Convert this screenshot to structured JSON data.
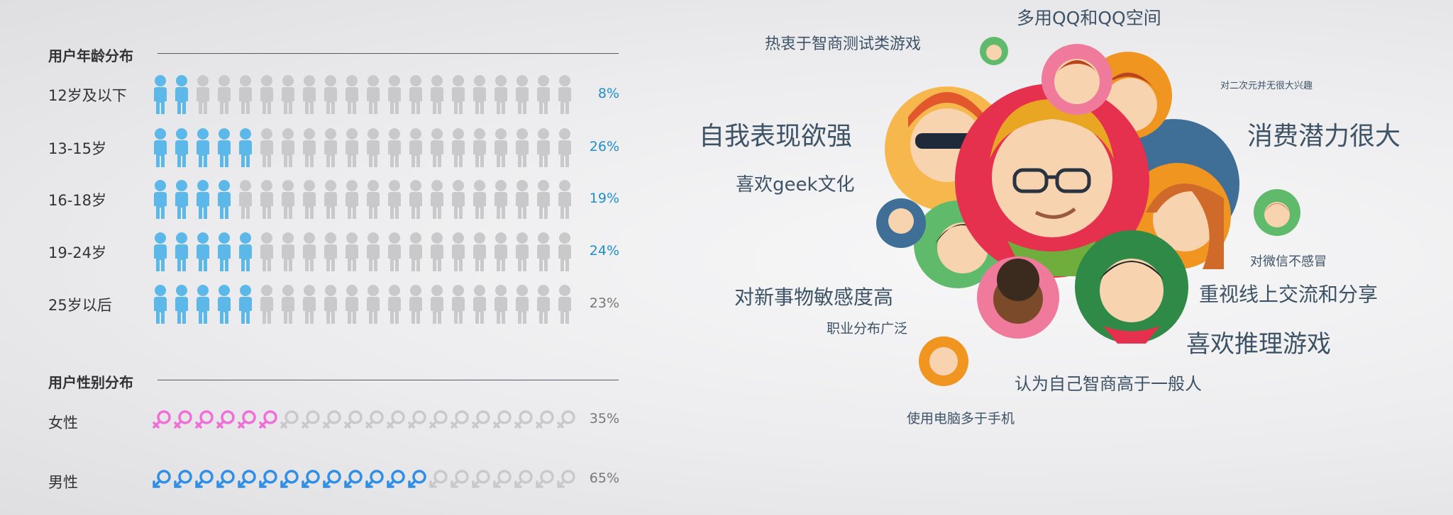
{
  "age_section": {
    "title": "用户年龄分布",
    "rows": [
      {
        "label": "12岁及以下",
        "pct": "8%",
        "highlight": true
      },
      {
        "label": "13-15岁",
        "pct": "26%",
        "highlight": true
      },
      {
        "label": "16-18岁",
        "pct": "19%",
        "highlight": true
      },
      {
        "label": "19-24岁",
        "pct": "24%",
        "highlight": true
      },
      {
        "label": "25岁以后",
        "pct": "23%",
        "highlight": false
      }
    ]
  },
  "gender_section": {
    "title": "用户性别分布",
    "rows": [
      {
        "label": "女性",
        "pct": "35%"
      },
      {
        "label": "男性",
        "pct": "65%"
      }
    ]
  },
  "chart_data": [
    {
      "type": "bar",
      "title": "用户年龄分布",
      "categories": [
        "12岁及以下",
        "13-15岁",
        "16-18岁",
        "19-24岁",
        "25岁以后"
      ],
      "values": [
        8,
        26,
        19,
        24,
        23
      ],
      "unit": "%",
      "icon_total": 20,
      "icon_filled": [
        2,
        5,
        4,
        5,
        5
      ],
      "colors": {
        "filled": "#5db8ea",
        "empty": "#c9c9cc",
        "pct_highlight": "#1f8fc8",
        "pct_plain": "#777777"
      }
    },
    {
      "type": "bar",
      "title": "用户性别分布",
      "categories": [
        "女性",
        "男性"
      ],
      "values": [
        35,
        65
      ],
      "unit": "%",
      "icon_total": 20,
      "icon_filled": [
        6,
        13
      ],
      "colors": {
        "female": "#f06fd7",
        "male": "#2f8ee6",
        "empty": "#c9c9cc"
      }
    }
  ],
  "traits": [
    {
      "text": "多用QQ和QQ空间"
    },
    {
      "text": "热衷于智商测试类游戏"
    },
    {
      "text": "对二次元并无很大兴趣"
    },
    {
      "text": "自我表现欲强"
    },
    {
      "text": "消费潜力很大"
    },
    {
      "text": "喜欢geek文化"
    },
    {
      "text": "对微信不感冒"
    },
    {
      "text": "对新事物敏感度高"
    },
    {
      "text": "重视线上交流和分享"
    },
    {
      "text": "职业分布广泛"
    },
    {
      "text": "喜欢推理游戏"
    },
    {
      "text": "认为自己智商高于一般人"
    },
    {
      "text": "使用电脑多于手机"
    }
  ]
}
